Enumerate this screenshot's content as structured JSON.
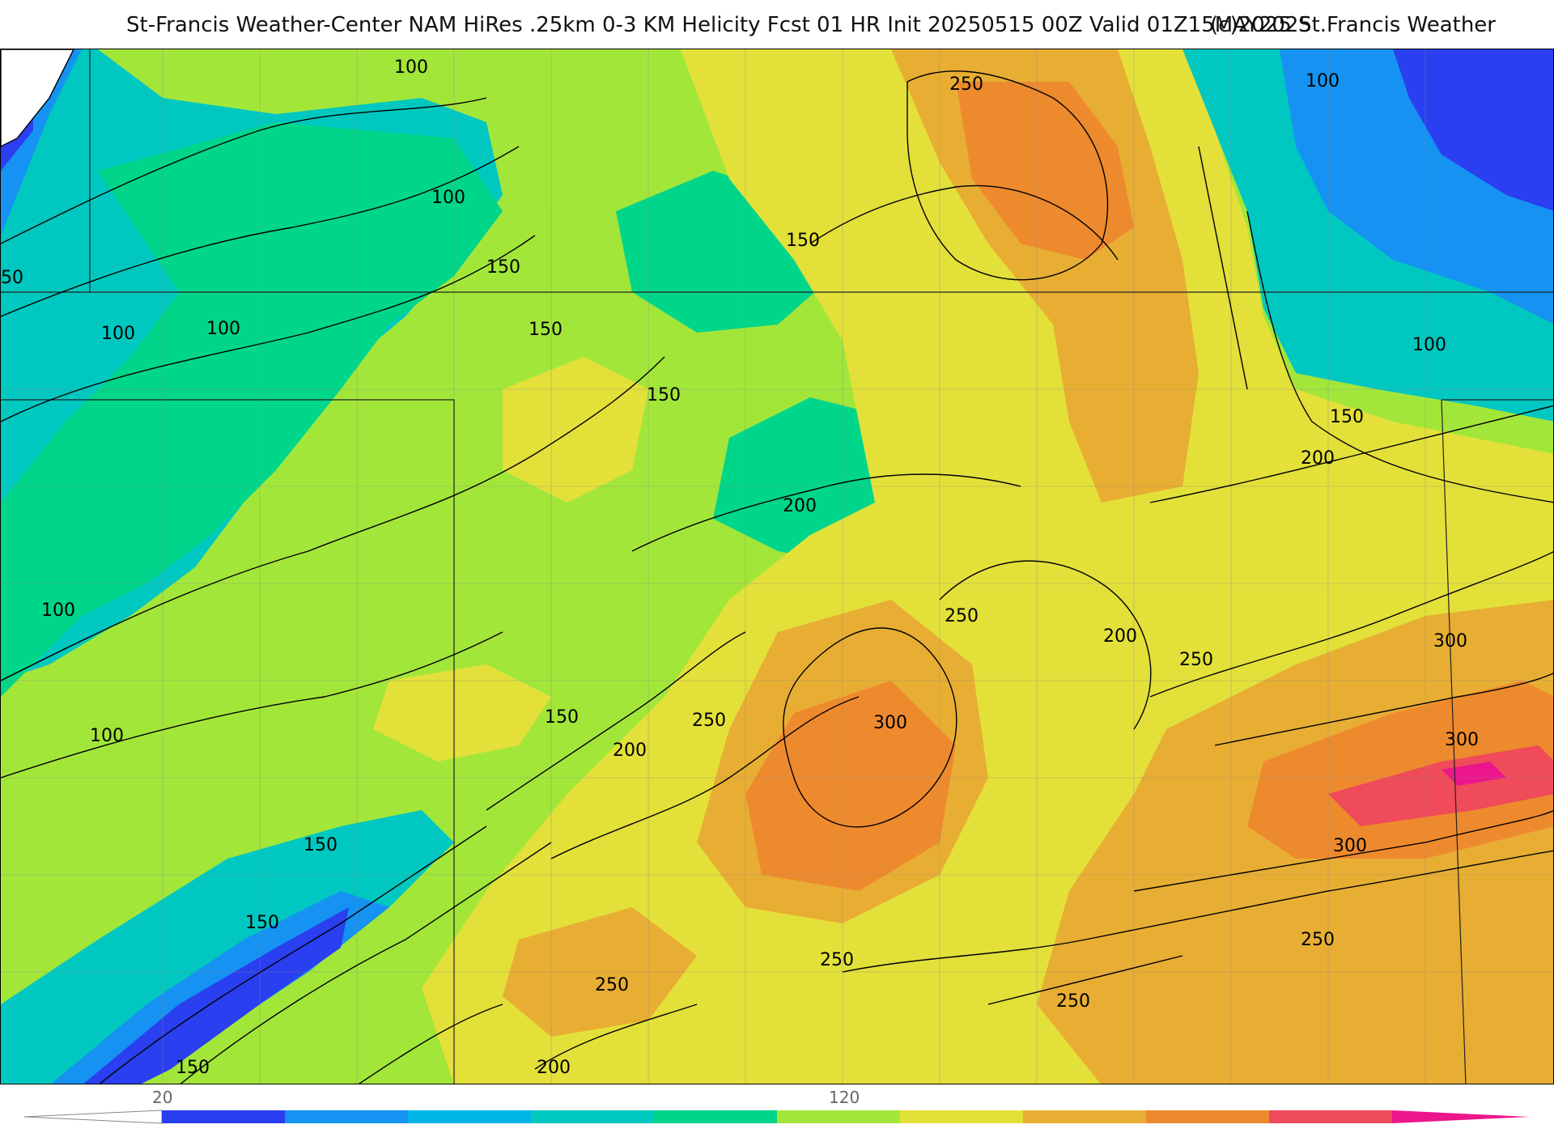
{
  "header": {
    "title": "St-Francis Weather-Center NAM HiRes .25km 0-3 KM Helicity Fcst 01 HR Init 20250515 00Z  Valid 01Z15MAY2025",
    "copyright": "(c)2025 St.Francis Weather"
  },
  "map": {
    "field": "0-3 KM Helicity",
    "contour_labels": [
      "100",
      "100",
      "150",
      "150",
      "150",
      "150",
      "150",
      "250",
      "100",
      "100",
      "100",
      "100",
      "150",
      "200",
      "200",
      "250",
      "200",
      "250",
      "300",
      "150",
      "200",
      "250",
      "100",
      "300",
      "300",
      "300",
      "150",
      "250",
      "250",
      "250",
      "250",
      "100",
      "150",
      "200",
      "50"
    ]
  },
  "legend": {
    "tick_labels": [
      "20",
      "120"
    ],
    "colors": [
      "#2a3ff0",
      "#1592f2",
      "#00b4e6",
      "#00c8c0",
      "#00d68a",
      "#a3e63a",
      "#e3e03a",
      "#e8ae33",
      "#ee8a2e",
      "#ef4b5b",
      "#ec168c"
    ]
  }
}
